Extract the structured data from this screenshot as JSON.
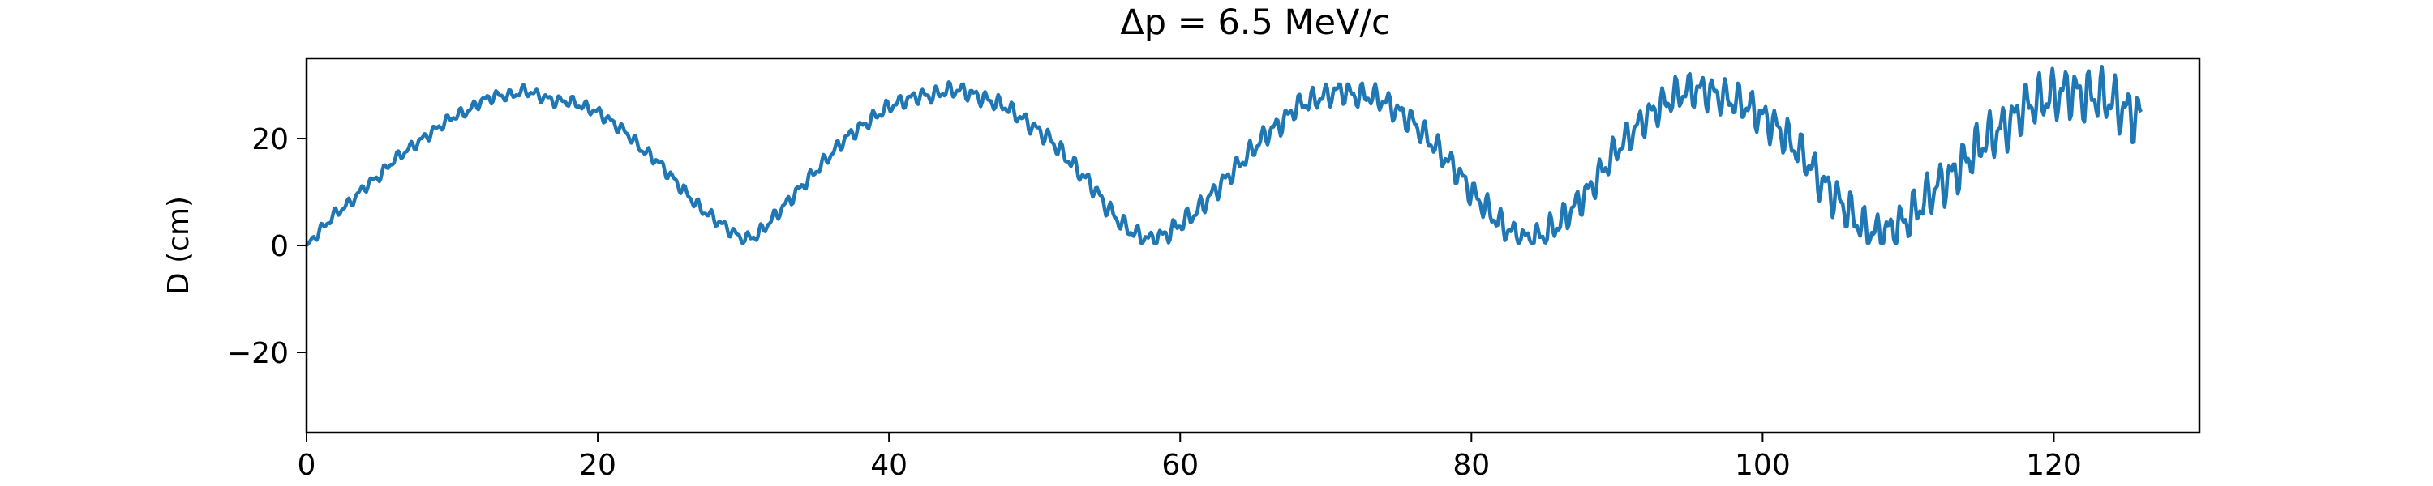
{
  "chart_data": {
    "type": "line",
    "title": "Δp = 6.5 MeV/c",
    "xlabel": "",
    "ylabel": "D (cm)",
    "xlim": [
      0,
      130
    ],
    "ylim": [
      -35,
      35
    ],
    "xticks": [
      0,
      20,
      40,
      60,
      80,
      100,
      120
    ],
    "yticks": [
      -20,
      0,
      20
    ],
    "ytick_labels": [
      "−20",
      "0",
      "20"
    ],
    "grid": false,
    "line_color": "#1f77b4",
    "series": [
      {
        "x": [
          0,
          1,
          2,
          3,
          4,
          5,
          6,
          7,
          8,
          9,
          10,
          11,
          12,
          13,
          14,
          15,
          16,
          17,
          18,
          19,
          20,
          21,
          22,
          23,
          24,
          25,
          26,
          27,
          28,
          29,
          30,
          31,
          32,
          33,
          34,
          35,
          36,
          37,
          38,
          39,
          40,
          41,
          42,
          43,
          44,
          45,
          46,
          47,
          48,
          49,
          50,
          51,
          52,
          53,
          54,
          55,
          56,
          57,
          58,
          59,
          60,
          61,
          62,
          63,
          64,
          65,
          66,
          67,
          68,
          69,
          70,
          71,
          72,
          73,
          74,
          75,
          76,
          77,
          78,
          79,
          80,
          81,
          82,
          83,
          84,
          85,
          86,
          87,
          88,
          89,
          90,
          91,
          92,
          93,
          94,
          95,
          96,
          97,
          98,
          99,
          100,
          101,
          102,
          103,
          104,
          105,
          106,
          107,
          108,
          109,
          110,
          111,
          112,
          113,
          114,
          115,
          116,
          117,
          118,
          119,
          120,
          121,
          122,
          123,
          124,
          125,
          126
        ],
        "y": [
          0,
          3,
          6,
          8,
          11,
          13,
          16,
          18,
          20,
          22,
          24,
          25,
          27,
          28,
          28,
          29,
          28,
          27,
          27,
          26,
          25,
          23,
          21,
          18,
          16,
          13,
          10,
          7,
          5,
          3,
          1,
          2,
          5,
          8,
          11,
          14,
          17,
          20,
          22,
          24,
          26,
          27,
          28,
          28,
          29,
          29,
          28,
          27,
          26,
          24,
          22,
          20,
          17,
          14,
          11,
          7,
          4,
          2,
          1,
          2,
          4,
          6,
          9,
          12,
          15,
          18,
          21,
          23,
          26,
          27,
          28,
          29,
          28,
          28,
          27,
          25,
          23,
          20,
          17,
          14,
          10,
          7,
          4,
          2,
          1,
          2,
          4,
          7,
          10,
          14,
          18,
          21,
          24,
          26,
          28,
          29,
          29,
          28,
          27,
          26,
          24,
          22,
          19,
          16,
          12,
          9,
          6,
          3,
          2,
          3,
          5,
          8,
          11,
          13,
          16,
          19,
          21,
          23,
          26,
          27,
          28,
          29,
          28,
          28,
          27,
          25,
          24
        ],
        "noise_amp": 1.2,
        "noise_amp_late": 6,
        "n_samples": 1260
      }
    ]
  }
}
